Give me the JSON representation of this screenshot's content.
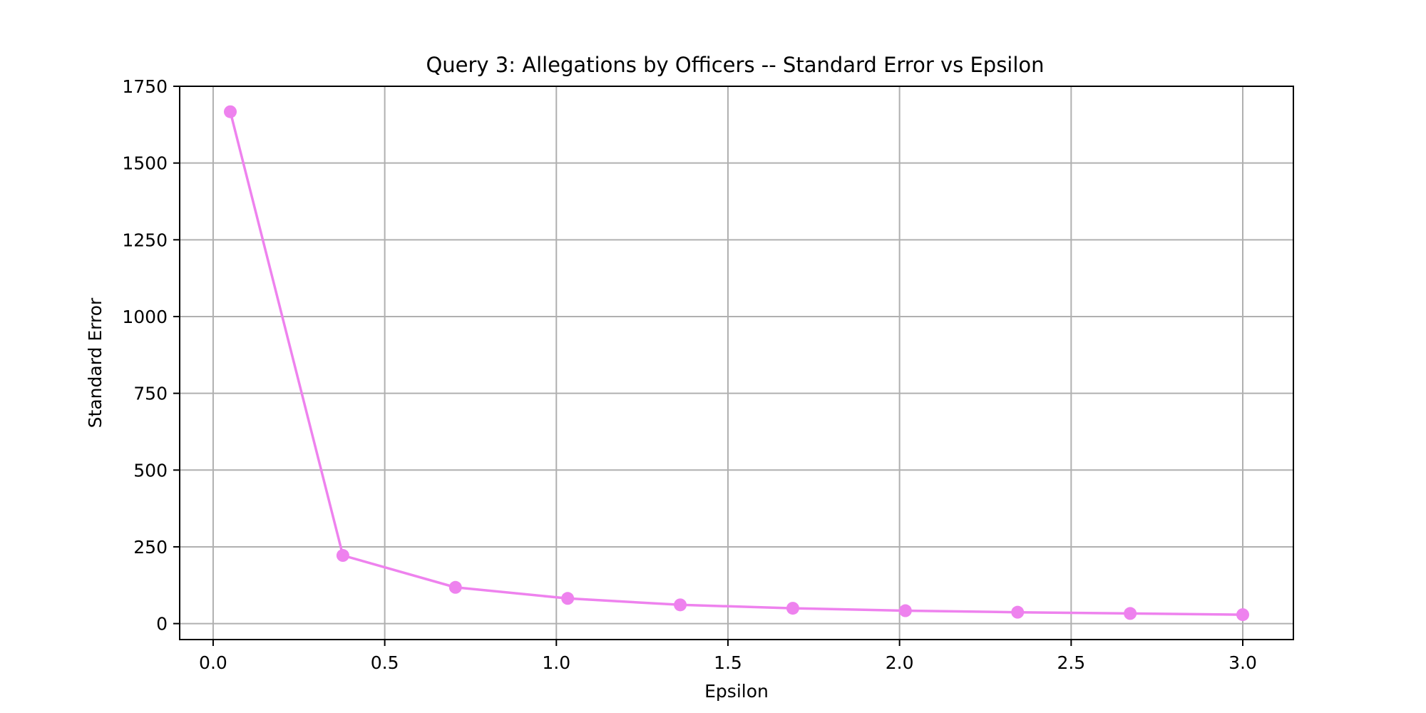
{
  "chart_data": {
    "type": "line",
    "title": "Query 3: Allegations by Officers -- Standard Error vs Epsilon",
    "xlabel": "Epsilon",
    "ylabel": "Standard Error",
    "x": [
      0.05,
      0.378,
      0.706,
      1.033,
      1.361,
      1.689,
      2.017,
      2.344,
      2.672,
      3.0
    ],
    "series": [
      {
        "name": "",
        "values": [
          1667,
          222,
          118,
          82,
          61,
          50,
          42,
          37,
          33,
          29
        ],
        "color": "#ee82ee",
        "marker": "circle"
      }
    ],
    "xlim": [
      -0.0975,
      3.1475
    ],
    "ylim": [
      -52,
      1750
    ],
    "xticks": [
      0.0,
      0.5,
      1.0,
      1.5,
      2.0,
      2.5,
      3.0
    ],
    "xtick_labels": [
      "0.0",
      "0.5",
      "1.0",
      "1.5",
      "2.0",
      "2.5",
      "3.0"
    ],
    "yticks": [
      0,
      250,
      500,
      750,
      1000,
      1250,
      1500,
      1750
    ],
    "ytick_labels": [
      "0",
      "250",
      "500",
      "750",
      "1000",
      "1250",
      "1500",
      "1750"
    ],
    "grid": true,
    "grid_color": "#b0b0b0"
  }
}
